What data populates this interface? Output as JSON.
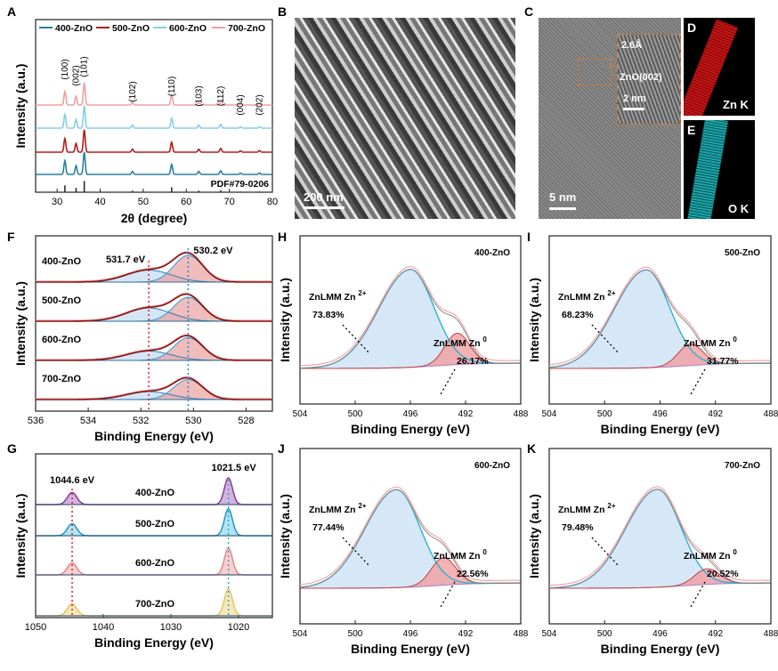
{
  "panels": {
    "A": {
      "letter": "A",
      "chart_data": {
        "type": "line",
        "xlabel": "2θ (degree)",
        "ylabel": "Intensity (a.u.)",
        "xlim": [
          25,
          80
        ],
        "xticks": [
          30,
          40,
          50,
          60,
          70,
          80
        ],
        "reference": "PDF#79-0206",
        "legend": [
          "400-ZnO",
          "500-ZnO",
          "600-ZnO",
          "700-ZnO"
        ],
        "series_colors": [
          "#2a7f9e",
          "#b51c1c",
          "#87cde8",
          "#f0a0a0"
        ],
        "peak_positions": [
          31.8,
          34.4,
          36.3,
          47.5,
          56.6,
          62.9,
          68.0,
          72.6,
          77.0
        ],
        "peak_labels": [
          "(100)",
          "(002)",
          "(101)",
          "(102)",
          "(110)",
          "(103)",
          "(112)",
          "(004)",
          "(202)"
        ],
        "peak_heights": [
          0.55,
          0.35,
          0.9,
          0.12,
          0.4,
          0.12,
          0.15,
          0.05,
          0.06
        ]
      }
    },
    "B": {
      "letter": "B",
      "scale": "200 nm"
    },
    "C": {
      "letter": "C",
      "scale": "5 nm",
      "inset_spacing": "2.6Å",
      "inset_plane": "ZnO(002)",
      "inset_scale": "2 nm"
    },
    "D": {
      "letter": "D",
      "element": "Zn K",
      "color": "#d21414"
    },
    "E": {
      "letter": "E",
      "element": "O K",
      "color": "#1ec3c8"
    },
    "F": {
      "letter": "F",
      "chart_data": {
        "type": "line",
        "xlabel": "Binding Energy (eV)",
        "ylabel": "Intensity (a.u.)",
        "xlim": [
          536,
          527
        ],
        "xticks": [
          536,
          534,
          532,
          530,
          528
        ],
        "series": [
          {
            "name": "400-ZnO",
            "peak1": 531.7,
            "peak2": 530.2,
            "a1": 0.45,
            "a2": 1.0
          },
          {
            "name": "500-ZnO",
            "peak1": 531.7,
            "peak2": 530.2,
            "a1": 0.5,
            "a2": 0.9
          },
          {
            "name": "600-ZnO",
            "peak1": 531.7,
            "peak2": 530.2,
            "a1": 0.35,
            "a2": 0.85
          },
          {
            "name": "700-ZnO",
            "peak1": 531.7,
            "peak2": 530.2,
            "a1": 0.3,
            "a2": 0.75
          }
        ],
        "annotations": [
          "531.7 eV",
          "530.2 eV"
        ]
      }
    },
    "G": {
      "letter": "G",
      "chart_data": {
        "type": "line",
        "xlabel": "Binding Energy (eV)",
        "ylabel": "Intensity (a.u.)",
        "xlim": [
          1050,
          1015
        ],
        "xticks": [
          1050,
          1040,
          1030,
          1020
        ],
        "series": [
          {
            "name": "400-ZnO",
            "color": "#8b3a8b",
            "fill": "#c9a0d8"
          },
          {
            "name": "500-ZnO",
            "color": "#1f98c4",
            "fill": "#9fdcf0"
          },
          {
            "name": "600-ZnO",
            "color": "#e08a8a",
            "fill": "#f6c4c4"
          },
          {
            "name": "700-ZnO",
            "color": "#e5c36a",
            "fill": "#f5e2a8"
          }
        ],
        "peaks": [
          1044.6,
          1021.5
        ],
        "annotations": [
          "1044.6 eV",
          "1021.5 eV"
        ]
      }
    },
    "H": {
      "letter": "H",
      "sample": "400-ZnO",
      "zn2_pct": "73.83%",
      "zn0_pct": "26.17%",
      "zn2_center": 496.0,
      "zn0_center": 492.6,
      "zn0_amp": 0.32
    },
    "I": {
      "letter": "I",
      "sample": "500-ZnO",
      "zn2_pct": "68.23%",
      "zn0_pct": "31.77%",
      "zn2_center": 497.0,
      "zn0_center": 493.8,
      "zn0_amp": 0.22
    },
    "J": {
      "letter": "J",
      "sample": "600-ZnO",
      "zn2_pct": "77.44%",
      "zn0_pct": "22.56%",
      "zn2_center": 497.0,
      "zn0_center": 493.6,
      "zn0_amp": 0.28
    },
    "K": {
      "letter": "K",
      "sample": "700-ZnO",
      "zn2_pct": "79.48%",
      "zn0_pct": "20.52%",
      "zn2_center": 496.2,
      "zn0_center": 492.6,
      "zn0_amp": 0.16
    }
  },
  "auger": {
    "xlabel": "Binding Energy (eV)",
    "ylabel": "Intensity (a.u.)",
    "xlim": [
      504,
      488
    ],
    "xticks": [
      504,
      500,
      496,
      492,
      488
    ],
    "zn2_label": "ZnLMM Zn",
    "zn2_sup": "2+",
    "zn0_label": "ZnLMM Zn",
    "zn0_sup": "0"
  }
}
